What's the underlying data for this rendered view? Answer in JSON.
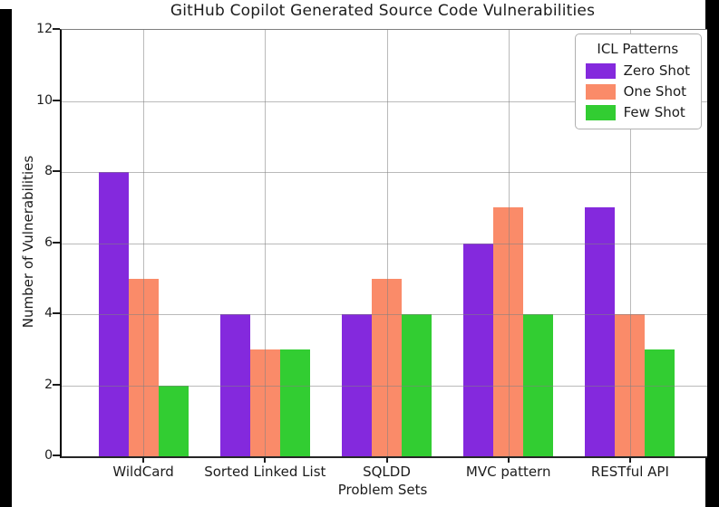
{
  "chart_data": {
    "type": "bar",
    "title": "GitHub Copilot Generated Source Code Vulnerabilities",
    "xlabel": "Problem Sets",
    "ylabel": "Number of Vulnerabilities",
    "categories": [
      "WildCard",
      "Sorted Linked List",
      "SQLDD",
      "MVC pattern",
      "RESTful API"
    ],
    "series": [
      {
        "name": "Zero Shot",
        "color": "#8429DD",
        "values": [
          8,
          4,
          4,
          6,
          7
        ]
      },
      {
        "name": "One Shot",
        "color": "#FA8B69",
        "values": [
          5,
          3,
          5,
          7,
          4
        ]
      },
      {
        "name": "Few Shot",
        "color": "#32CD32",
        "values": [
          2,
          3,
          4,
          4,
          3
        ]
      }
    ],
    "ylim": [
      0,
      12
    ],
    "yticks": [
      0,
      2,
      4,
      6,
      8,
      10,
      12
    ],
    "legend_title": "ICL Patterns",
    "legend_position": "upper right",
    "grid": true,
    "grid_color": "#828282",
    "background_color": "#ffffff",
    "canvas_border_color": "#000000"
  }
}
